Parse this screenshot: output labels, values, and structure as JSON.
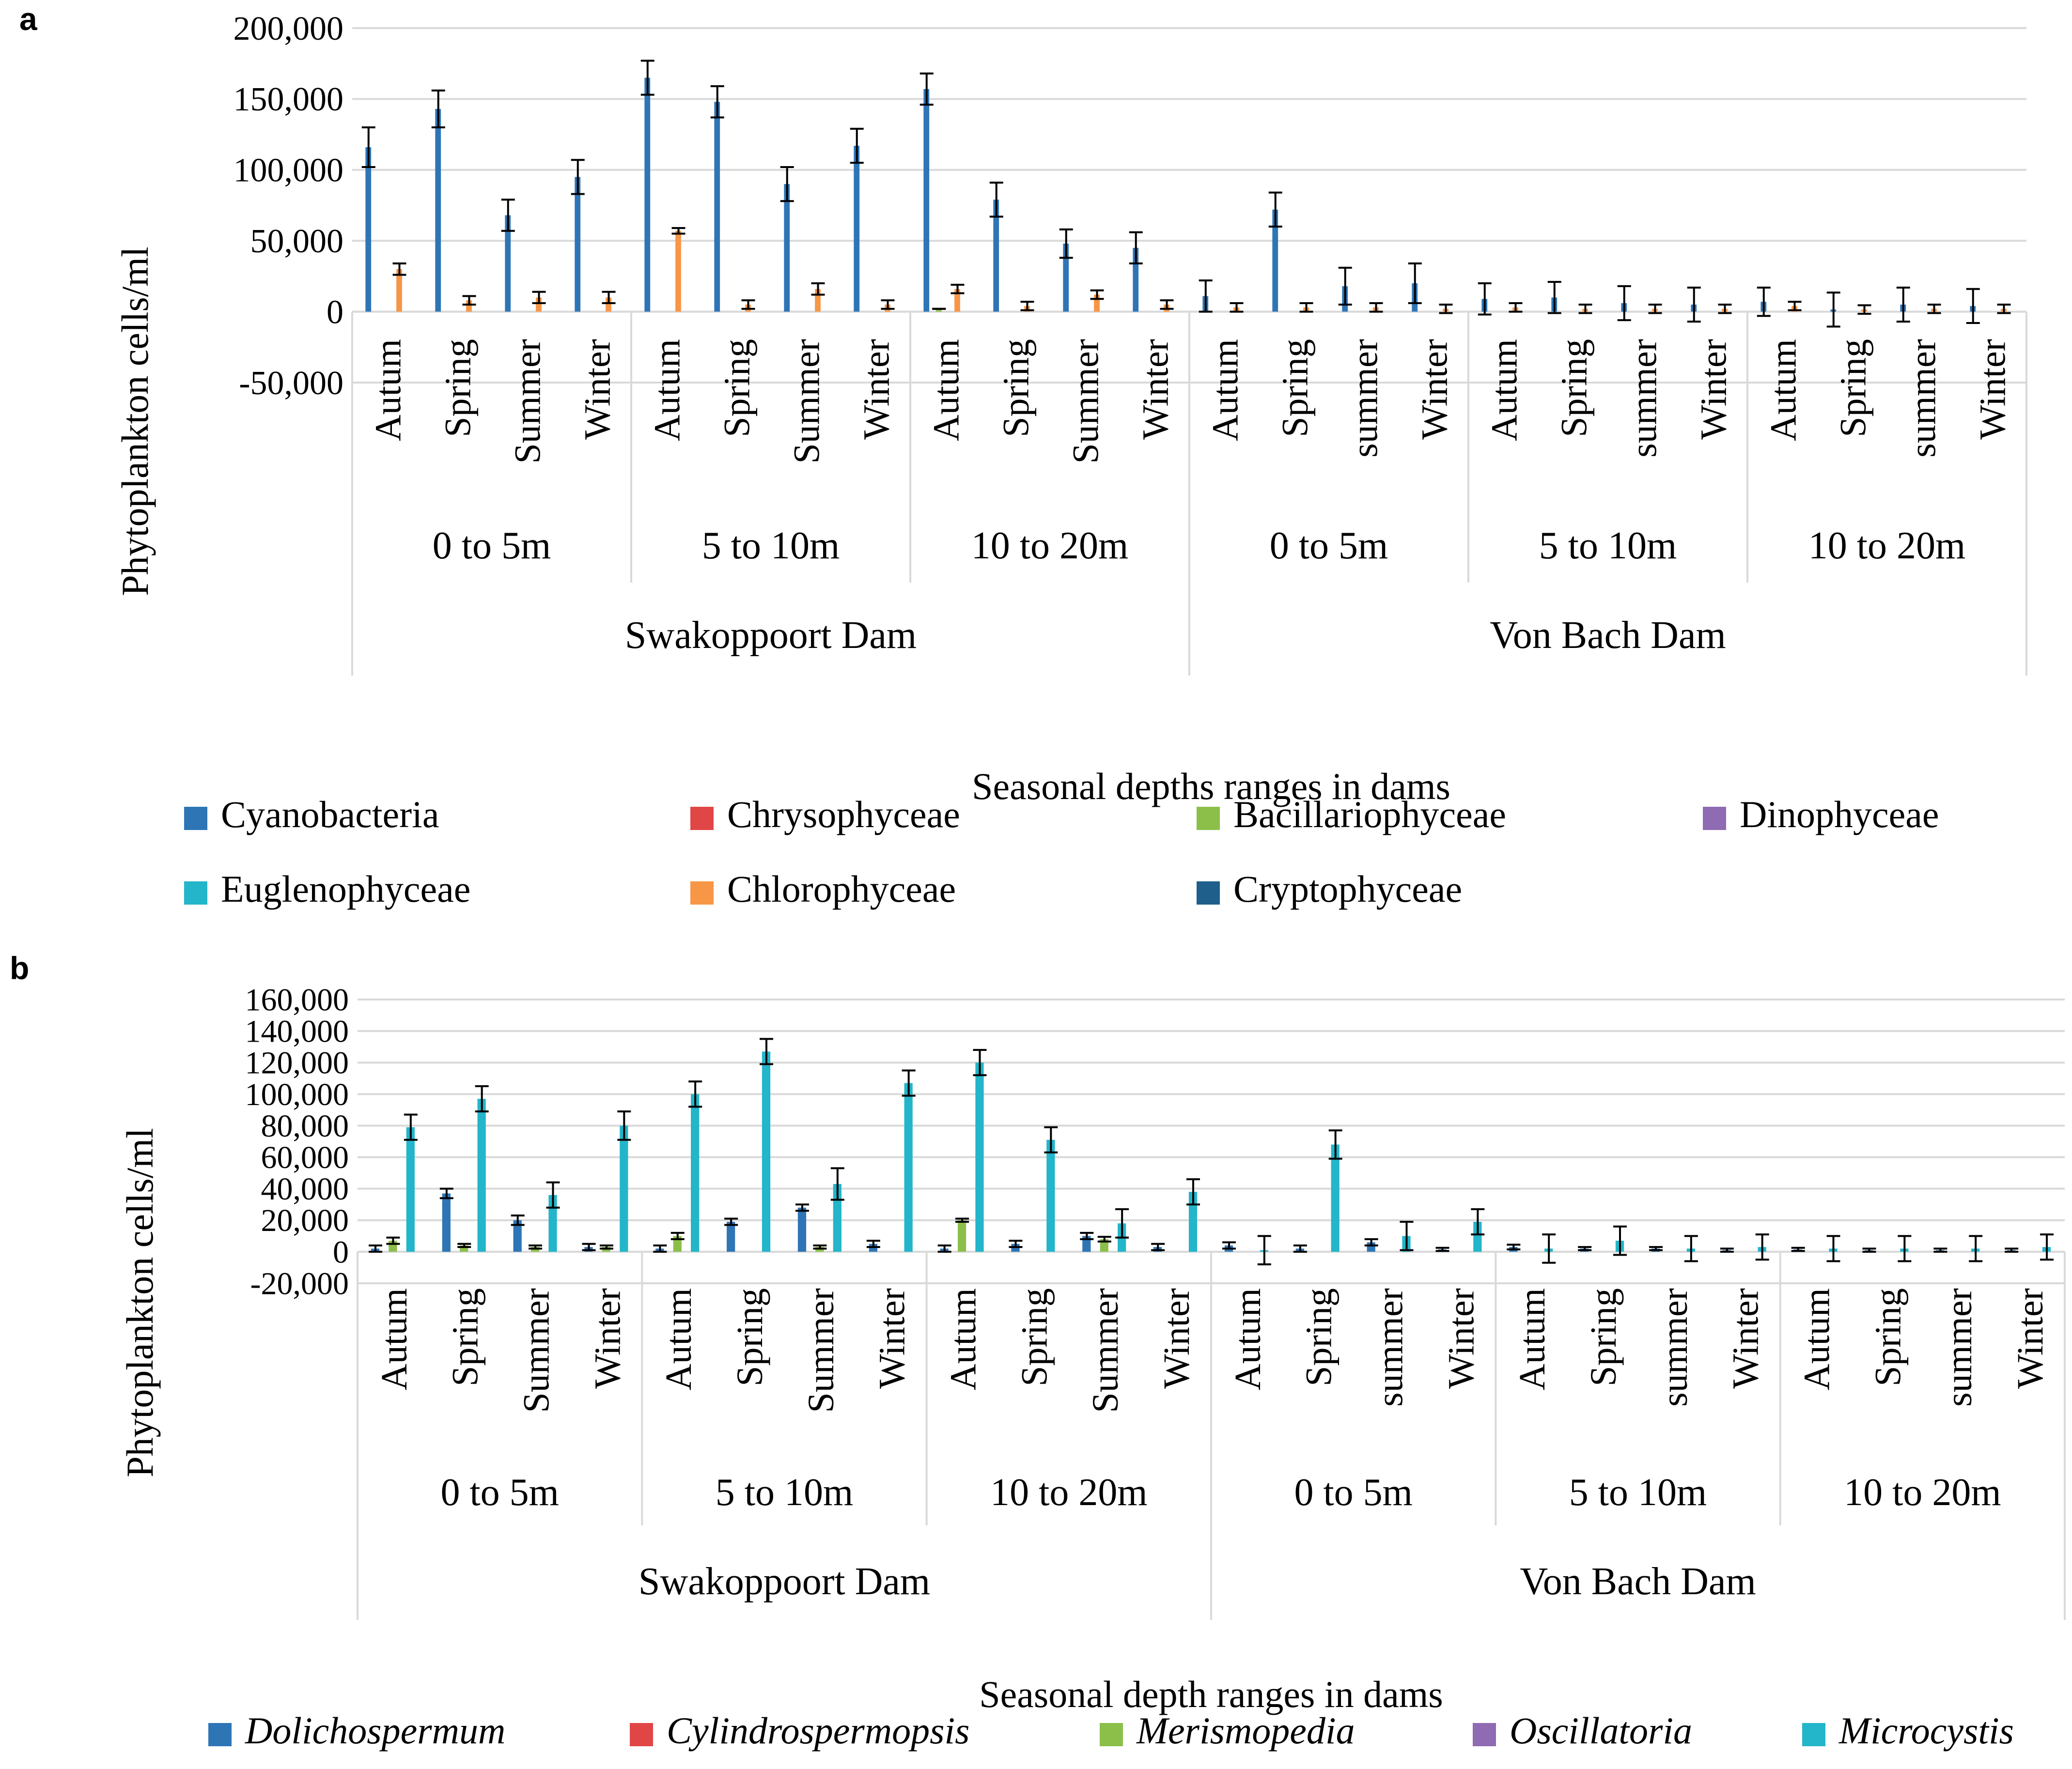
{
  "chart_data": [
    {
      "panel_label": "a",
      "type": "bar",
      "title": "",
      "ylabel": "Phytoplankton cells/ml",
      "xlabel": "Seasonal depths ranges  in dams",
      "ylim": [
        -50000,
        200000
      ],
      "yticks": [
        -50000,
        0,
        50000,
        100000,
        150000,
        200000
      ],
      "ytick_labels": [
        "-50,000",
        "0",
        "50,000",
        "100,000",
        "150,000",
        "200,000"
      ],
      "grid": true,
      "categories": [
        "Autum",
        "Spring",
        "Summer",
        "Winter",
        "Autum",
        "Spring",
        "Summer",
        "Winter",
        "Autum",
        "Spring",
        "Summer",
        "Winter",
        "Autum",
        "Spring",
        "summer",
        "Winter",
        "Autum",
        "Spring",
        "summer",
        "Winter",
        "Autum",
        "Spring",
        "summer",
        "Winter"
      ],
      "depth_groups": [
        "0 to 5m",
        "5 to 10m",
        "10 to 20m",
        "0 to 5m",
        "5 to 10m",
        "10 to 20m"
      ],
      "dam_groups": [
        "Swakoppoort Dam",
        "Von Bach Dam"
      ],
      "series": [
        {
          "name": "Cyanobacteria",
          "color": "#2E75B6",
          "values": [
            116000,
            143000,
            68000,
            95000,
            165000,
            148000,
            90000,
            117000,
            157000,
            79000,
            48000,
            45000,
            11000,
            72000,
            18000,
            20000,
            9000,
            10000,
            6000,
            5000,
            7000,
            1500,
            5000,
            4000
          ],
          "errors": [
            14000,
            13000,
            11000,
            12000,
            12000,
            11000,
            12000,
            12000,
            11000,
            12000,
            10000,
            11000,
            11000,
            12000,
            13000,
            14000,
            11000,
            11000,
            12000,
            12000,
            10000,
            12000,
            12000,
            12000
          ]
        },
        {
          "name": "Chrysophyceae",
          "color": "#E04646",
          "values": [
            0,
            0,
            0,
            0,
            0,
            0,
            0,
            0,
            0,
            0,
            0,
            0,
            0,
            0,
            0,
            0,
            0,
            0,
            0,
            0,
            0,
            0,
            0,
            0
          ],
          "errors": [
            0,
            0,
            0,
            0,
            0,
            0,
            0,
            0,
            0,
            0,
            0,
            0,
            0,
            0,
            0,
            0,
            0,
            0,
            0,
            0,
            0,
            0,
            0,
            0
          ]
        },
        {
          "name": "Bacillariophyceae",
          "color": "#8CBF4A",
          "values": [
            0,
            0,
            0,
            0,
            0,
            0,
            0,
            0,
            2000,
            0,
            0,
            0,
            0,
            0,
            0,
            0,
            0,
            0,
            0,
            0,
            0,
            0,
            0,
            0
          ],
          "errors": [
            0,
            0,
            0,
            0,
            0,
            0,
            0,
            0,
            0,
            0,
            0,
            0,
            0,
            0,
            0,
            0,
            0,
            0,
            0,
            0,
            0,
            0,
            0,
            0
          ]
        },
        {
          "name": "Dinophyceae",
          "color": "#8E6BB3",
          "values": [
            0,
            0,
            0,
            0,
            0,
            0,
            0,
            0,
            0,
            0,
            0,
            0,
            0,
            0,
            0,
            0,
            0,
            0,
            0,
            0,
            0,
            0,
            0,
            0
          ],
          "errors": [
            0,
            0,
            0,
            0,
            0,
            0,
            0,
            0,
            0,
            0,
            0,
            0,
            0,
            0,
            0,
            0,
            0,
            0,
            0,
            0,
            0,
            0,
            0,
            0
          ]
        },
        {
          "name": "Euglenophyceae",
          "color": "#23B5C9",
          "values": [
            0,
            0,
            0,
            0,
            0,
            0,
            0,
            0,
            0,
            0,
            0,
            0,
            0,
            0,
            0,
            0,
            0,
            0,
            0,
            0,
            0,
            0,
            0,
            0
          ],
          "errors": [
            0,
            0,
            0,
            0,
            0,
            0,
            0,
            0,
            0,
            0,
            0,
            0,
            0,
            0,
            0,
            0,
            0,
            0,
            0,
            0,
            0,
            0,
            0,
            0
          ]
        },
        {
          "name": "Chlorophyceae",
          "color": "#F79646",
          "values": [
            30000,
            8000,
            10000,
            10000,
            57000,
            5000,
            16000,
            5000,
            16000,
            4000,
            12000,
            5000,
            3000,
            3000,
            3000,
            2000,
            3000,
            2000,
            2000,
            2000,
            4000,
            1500,
            2000,
            2000
          ],
          "errors": [
            4000,
            3000,
            4000,
            4000,
            2000,
            3000,
            4000,
            3000,
            3000,
            3000,
            3000,
            3000,
            3000,
            3000,
            3000,
            3000,
            3000,
            3000,
            3000,
            3000,
            3000,
            3000,
            3000,
            3000
          ]
        },
        {
          "name": "Cryptophyceae",
          "color": "#1F5F8B",
          "values": [
            0,
            0,
            0,
            0,
            0,
            0,
            0,
            0,
            0,
            0,
            0,
            0,
            0,
            0,
            0,
            0,
            0,
            0,
            0,
            0,
            0,
            0,
            0,
            0
          ],
          "errors": [
            0,
            0,
            0,
            0,
            0,
            0,
            0,
            0,
            0,
            0,
            0,
            0,
            0,
            0,
            0,
            0,
            0,
            0,
            0,
            0,
            0,
            0,
            0,
            0
          ]
        }
      ]
    },
    {
      "panel_label": "b",
      "type": "bar",
      "title": "",
      "ylabel": "Phytoplankton cells/ml",
      "xlabel": "Seasonal depth ranges in dams",
      "ylim": [
        -20000,
        160000
      ],
      "yticks": [
        -20000,
        0,
        20000,
        40000,
        60000,
        80000,
        100000,
        120000,
        140000,
        160000
      ],
      "ytick_labels": [
        "-20,000",
        "0",
        "20,000",
        "40,000",
        "60,000",
        "80,000",
        "100,000",
        "120,000",
        "140,000",
        "160,000"
      ],
      "grid": true,
      "categories": [
        "Autum",
        "Spring",
        "Summer",
        "Winter",
        "Autum",
        "Spring",
        "Summer",
        "Winter",
        "Autum",
        "Spring",
        "Summer",
        "Winter",
        "Autum",
        "Spring",
        "summer",
        "Winter",
        "Autum",
        "Spring",
        "summer",
        "Winter",
        "Autum",
        "Spring",
        "summer",
        "Winter"
      ],
      "depth_groups": [
        "0 to 5m",
        "5 to 10m",
        "10 to 20m",
        "0 to 5m",
        "5 to 10m",
        "10 to 20m"
      ],
      "dam_groups": [
        "Swakoppoort Dam",
        "Von Bach Dam"
      ],
      "series": [
        {
          "name": "Dolichospermum",
          "color": "#2E75B6",
          "values": [
            2000,
            37000,
            20000,
            3000,
            2000,
            19000,
            28000,
            5000,
            2000,
            5000,
            10000,
            3000,
            4000,
            2000,
            6000,
            1500,
            3000,
            2000,
            2000,
            1000,
            1500,
            1000,
            1000,
            1000
          ],
          "errors": [
            2000,
            3000,
            3000,
            2000,
            2000,
            2000,
            2000,
            2000,
            2000,
            2000,
            2000,
            2000,
            2000,
            2000,
            2000,
            1000,
            1500,
            1000,
            1000,
            1000,
            1000,
            1000,
            1000,
            1000
          ]
        },
        {
          "name": "Cylindrospermopsis",
          "color": "#E04646",
          "values": [
            0,
            0,
            0,
            0,
            0,
            0,
            0,
            0,
            0,
            0,
            0,
            0,
            0,
            0,
            0,
            0,
            0,
            0,
            0,
            0,
            0,
            0,
            0,
            0
          ],
          "errors": [
            0,
            0,
            0,
            0,
            0,
            0,
            0,
            0,
            0,
            0,
            0,
            0,
            0,
            0,
            0,
            0,
            0,
            0,
            0,
            0,
            0,
            0,
            0,
            0
          ]
        },
        {
          "name": "Merismopedia",
          "color": "#8CBF4A",
          "values": [
            7000,
            4000,
            3000,
            3000,
            10000,
            0,
            3000,
            0,
            20000,
            0,
            8000,
            0,
            0,
            0,
            0,
            0,
            0,
            0,
            0,
            0,
            0,
            0,
            0,
            0
          ],
          "errors": [
            2000,
            1000,
            1000,
            1000,
            2000,
            0,
            1000,
            0,
            1000,
            0,
            1500,
            0,
            0,
            0,
            0,
            0,
            0,
            0,
            0,
            0,
            0,
            0,
            0,
            0
          ]
        },
        {
          "name": "Oscillatoria",
          "color": "#8E6BB3",
          "values": [
            0,
            0,
            0,
            0,
            0,
            0,
            0,
            0,
            0,
            0,
            0,
            0,
            0,
            0,
            0,
            0,
            0,
            0,
            0,
            0,
            0,
            0,
            0,
            0
          ],
          "errors": [
            0,
            0,
            0,
            0,
            0,
            0,
            0,
            0,
            0,
            0,
            0,
            0,
            0,
            0,
            0,
            0,
            0,
            0,
            0,
            0,
            0,
            0,
            0,
            0
          ]
        },
        {
          "name": "Microcystis",
          "color": "#23B5C9",
          "values": [
            79000,
            97000,
            36000,
            80000,
            100000,
            127000,
            43000,
            107000,
            120000,
            71000,
            18000,
            38000,
            1000,
            68000,
            10000,
            19000,
            2000,
            7000,
            2000,
            3000,
            2000,
            2000,
            2000,
            3000
          ],
          "errors": [
            8000,
            8000,
            8000,
            9000,
            8000,
            8000,
            10000,
            8000,
            8000,
            8000,
            9000,
            8000,
            9000,
            9000,
            9000,
            8000,
            9000,
            9000,
            8000,
            8000,
            8000,
            8000,
            8000,
            8000
          ]
        }
      ]
    }
  ]
}
